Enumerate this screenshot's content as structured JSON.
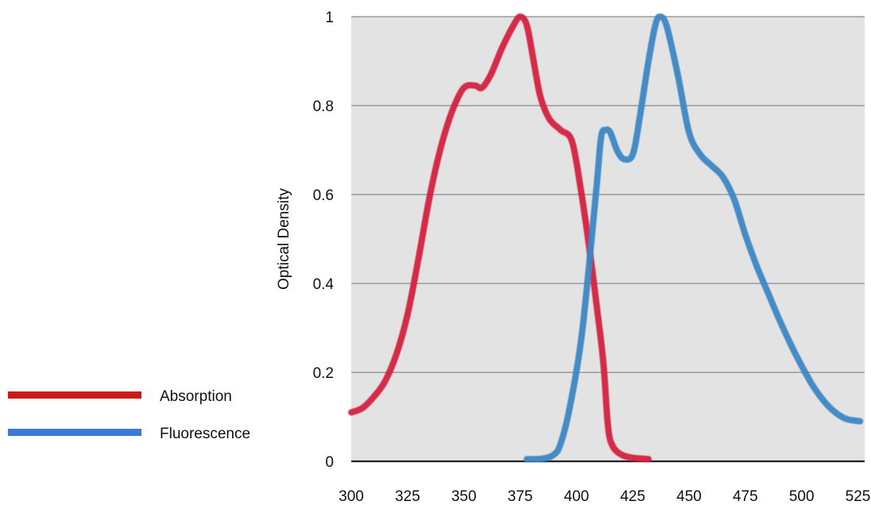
{
  "chart_data": {
    "type": "line",
    "title": "",
    "xlabel": "",
    "ylabel": "Optical Density",
    "xlim": [
      300,
      528
    ],
    "ylim": [
      0,
      1
    ],
    "x_ticks": [
      "300",
      "325",
      "350",
      "375",
      "400",
      "425",
      "450",
      "475",
      "500",
      "525"
    ],
    "y_ticks": [
      "0",
      "0.2",
      "0.4",
      "0.6",
      "0.8",
      "1"
    ],
    "grid": "horizontal",
    "legend_position": "bottom-left",
    "background_color": "#e3e3e3",
    "series": [
      {
        "name": "Absorption",
        "color": "#d3203f",
        "legend_color": "#cc1a1a",
        "points": [
          [
            300,
            0.11
          ],
          [
            305,
            0.12
          ],
          [
            310,
            0.145
          ],
          [
            315,
            0.18
          ],
          [
            320,
            0.24
          ],
          [
            325,
            0.33
          ],
          [
            330,
            0.46
          ],
          [
            335,
            0.6
          ],
          [
            340,
            0.71
          ],
          [
            345,
            0.79
          ],
          [
            350,
            0.84
          ],
          [
            355,
            0.845
          ],
          [
            358,
            0.84
          ],
          [
            362,
            0.87
          ],
          [
            367,
            0.93
          ],
          [
            372,
            0.98
          ],
          [
            375,
            1.0
          ],
          [
            378,
            0.98
          ],
          [
            381,
            0.9
          ],
          [
            384,
            0.82
          ],
          [
            388,
            0.77
          ],
          [
            393,
            0.745
          ],
          [
            398,
            0.72
          ],
          [
            402,
            0.61
          ],
          [
            406,
            0.47
          ],
          [
            409,
            0.35
          ],
          [
            412,
            0.22
          ],
          [
            414,
            0.08
          ],
          [
            416,
            0.035
          ],
          [
            420,
            0.015
          ],
          [
            425,
            0.008
          ],
          [
            432,
            0.005
          ]
        ]
      },
      {
        "name": "Fluorescence",
        "color": "#3d87c4",
        "legend_color": "#3a78d9",
        "points": [
          [
            378,
            0.005
          ],
          [
            385,
            0.006
          ],
          [
            390,
            0.015
          ],
          [
            393,
            0.04
          ],
          [
            397,
            0.12
          ],
          [
            402,
            0.27
          ],
          [
            406,
            0.46
          ],
          [
            409,
            0.62
          ],
          [
            411,
            0.73
          ],
          [
            413,
            0.745
          ],
          [
            415,
            0.74
          ],
          [
            418,
            0.7
          ],
          [
            421,
            0.68
          ],
          [
            425,
            0.69
          ],
          [
            428,
            0.77
          ],
          [
            432,
            0.9
          ],
          [
            435,
            0.98
          ],
          [
            437,
            1.0
          ],
          [
            440,
            0.98
          ],
          [
            445,
            0.87
          ],
          [
            450,
            0.74
          ],
          [
            455,
            0.69
          ],
          [
            460,
            0.665
          ],
          [
            465,
            0.64
          ],
          [
            470,
            0.59
          ],
          [
            475,
            0.51
          ],
          [
            480,
            0.44
          ],
          [
            485,
            0.38
          ],
          [
            490,
            0.32
          ],
          [
            495,
            0.265
          ],
          [
            500,
            0.215
          ],
          [
            505,
            0.17
          ],
          [
            510,
            0.135
          ],
          [
            515,
            0.11
          ],
          [
            520,
            0.095
          ],
          [
            526,
            0.09
          ]
        ]
      }
    ]
  }
}
